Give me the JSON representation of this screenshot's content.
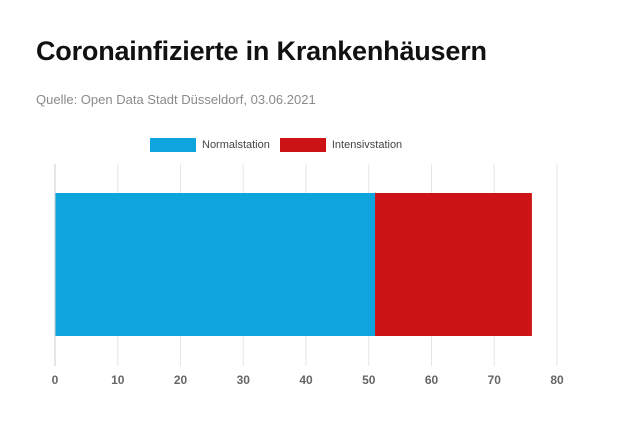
{
  "title": "Coronainfizierte in Krankenhäusern",
  "subtitle": "Quelle: Open Data Stadt Düsseldorf, 03.06.2021",
  "chart_data": {
    "type": "bar",
    "orientation": "horizontal",
    "stacked": true,
    "title": "Coronainfizierte in Krankenhäusern",
    "subtitle": "Quelle: Open Data Stadt Düsseldorf, 03.06.2021",
    "categories": [
      ""
    ],
    "series": [
      {
        "name": "Normalstation",
        "values": [
          51
        ],
        "color": "#0ea4dd"
      },
      {
        "name": "Intensivstation",
        "values": [
          25
        ],
        "color": "#cc1417"
      }
    ],
    "xlim": [
      0,
      80
    ],
    "xticks": [
      0,
      10,
      20,
      30,
      40,
      50,
      60,
      70,
      80
    ],
    "xlabel": "",
    "ylabel": "",
    "grid": true,
    "legend_position": "top"
  }
}
